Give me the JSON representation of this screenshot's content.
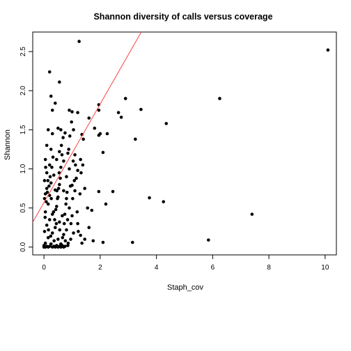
{
  "chart_data": {
    "type": "scatter",
    "title": "Shannon diversity of calls versus coverage",
    "xlabel": "Staph_cov",
    "ylabel": "Shannon",
    "xlim": [
      -0.4,
      10.4
    ],
    "ylim": [
      -0.1,
      2.75
    ],
    "x_ticks": [
      "0",
      "2",
      "4",
      "6",
      "8",
      "10"
    ],
    "y_ticks": [
      "0.0",
      "0.5",
      "1.0",
      "1.5",
      "2.0",
      "2.5"
    ],
    "grid": false,
    "point_color": "#000000",
    "fit_line": {
      "intercept": 0.57,
      "slope": 0.63,
      "color": "#ff4040"
    },
    "points": [
      [
        10.1,
        2.52
      ],
      [
        1.25,
        2.63
      ],
      [
        0.2,
        2.24
      ],
      [
        0.55,
        2.11
      ],
      [
        0.25,
        1.93
      ],
      [
        2.9,
        1.9
      ],
      [
        6.25,
        1.9
      ],
      [
        0.4,
        1.84
      ],
      [
        0.3,
        1.75
      ],
      [
        0.9,
        1.75
      ],
      [
        1.0,
        1.73
      ],
      [
        1.2,
        1.72
      ],
      [
        1.95,
        1.82
      ],
      [
        1.95,
        1.75
      ],
      [
        2.65,
        1.72
      ],
      [
        3.45,
        1.76
      ],
      [
        2.75,
        1.66
      ],
      [
        4.35,
        1.58
      ],
      [
        1.6,
        1.65
      ],
      [
        1.8,
        1.52
      ],
      [
        0.5,
        1.52
      ],
      [
        0.6,
        1.5
      ],
      [
        1.05,
        1.5
      ],
      [
        1.35,
        1.44
      ],
      [
        2.0,
        1.45
      ],
      [
        1.95,
        1.43
      ],
      [
        2.25,
        1.45
      ],
      [
        0.15,
        1.5
      ],
      [
        0.3,
        1.45
      ],
      [
        0.75,
        1.46
      ],
      [
        1.4,
        1.38
      ],
      [
        3.25,
        1.38
      ],
      [
        0.1,
        1.3
      ],
      [
        0.25,
        1.25
      ],
      [
        0.55,
        1.22
      ],
      [
        0.85,
        1.2
      ],
      [
        1.1,
        1.18
      ],
      [
        2.1,
        1.21
      ],
      [
        0.05,
        1.12
      ],
      [
        0.45,
        1.12
      ],
      [
        0.7,
        1.1
      ],
      [
        1.3,
        1.12
      ],
      [
        0.2,
        1.05
      ],
      [
        0.6,
        1.02
      ],
      [
        0.9,
        1.0
      ],
      [
        1.2,
        0.98
      ],
      [
        0.1,
        0.95
      ],
      [
        0.35,
        0.92
      ],
      [
        0.8,
        0.9
      ],
      [
        1.15,
        0.88
      ],
      [
        0.02,
        0.85
      ],
      [
        0.25,
        0.82
      ],
      [
        0.55,
        0.8
      ],
      [
        1.0,
        0.79
      ],
      [
        1.45,
        0.75
      ],
      [
        0.1,
        0.75
      ],
      [
        0.4,
        0.73
      ],
      [
        0.7,
        0.72
      ],
      [
        1.1,
        0.72
      ],
      [
        2.45,
        0.71
      ],
      [
        1.95,
        0.71
      ],
      [
        0.05,
        0.68
      ],
      [
        0.2,
        0.66
      ],
      [
        0.5,
        0.64
      ],
      [
        0.8,
        0.62
      ],
      [
        3.75,
        0.63
      ],
      [
        4.25,
        0.58
      ],
      [
        2.2,
        0.55
      ],
      [
        0.15,
        0.55
      ],
      [
        0.45,
        0.52
      ],
      [
        0.9,
        0.5
      ],
      [
        1.55,
        0.5
      ],
      [
        1.7,
        0.47
      ],
      [
        0.05,
        0.45
      ],
      [
        0.3,
        0.42
      ],
      [
        0.65,
        0.4
      ],
      [
        1.0,
        0.4
      ],
      [
        7.4,
        0.42
      ],
      [
        0.2,
        0.35
      ],
      [
        0.55,
        0.32
      ],
      [
        1.2,
        0.3
      ],
      [
        0.1,
        0.28
      ],
      [
        0.4,
        0.25
      ],
      [
        0.8,
        0.22
      ],
      [
        1.6,
        0.25
      ],
      [
        0.02,
        0.2
      ],
      [
        0.3,
        0.18
      ],
      [
        0.7,
        0.16
      ],
      [
        1.05,
        0.18
      ],
      [
        1.3,
        0.15
      ],
      [
        0.15,
        0.12
      ],
      [
        0.5,
        0.1
      ],
      [
        0.95,
        0.1
      ],
      [
        1.45,
        0.1
      ],
      [
        5.85,
        0.09
      ],
      [
        3.15,
        0.06
      ],
      [
        2.1,
        0.06
      ],
      [
        1.75,
        0.08
      ],
      [
        0.05,
        0.05
      ],
      [
        0.25,
        0.04
      ],
      [
        0.6,
        0.04
      ],
      [
        1.35,
        0.05
      ],
      [
        0.0,
        0.02
      ],
      [
        0.1,
        0.01
      ],
      [
        0.2,
        0.01
      ],
      [
        0.35,
        0.01
      ],
      [
        0.45,
        0.02
      ],
      [
        0.55,
        0.01
      ],
      [
        0.65,
        0.02
      ],
      [
        0.75,
        0.01
      ],
      [
        0.85,
        0.02
      ],
      [
        0.0,
        0.0
      ],
      [
        0.05,
        0.0
      ],
      [
        0.15,
        0.0
      ],
      [
        0.3,
        0.0
      ],
      [
        0.4,
        0.0
      ],
      [
        0.5,
        0.0
      ],
      [
        0.6,
        0.0
      ],
      [
        0.7,
        0.0
      ],
      [
        0.02,
        0.62
      ],
      [
        0.08,
        0.58
      ],
      [
        0.12,
        0.7
      ],
      [
        0.18,
        0.78
      ],
      [
        0.22,
        0.9
      ],
      [
        0.28,
        1.02
      ],
      [
        0.32,
        1.15
      ],
      [
        0.38,
        0.35
      ],
      [
        0.42,
        0.48
      ],
      [
        0.48,
        0.62
      ],
      [
        0.52,
        0.75
      ],
      [
        0.58,
        0.88
      ],
      [
        0.62,
        1.3
      ],
      [
        0.68,
        1.4
      ],
      [
        0.72,
        0.3
      ],
      [
        0.78,
        0.55
      ],
      [
        0.82,
        0.7
      ],
      [
        0.88,
        1.25
      ],
      [
        0.92,
        1.42
      ],
      [
        0.98,
        1.6
      ],
      [
        1.02,
        0.62
      ],
      [
        1.08,
        0.85
      ],
      [
        1.12,
        1.05
      ],
      [
        1.18,
        0.45
      ],
      [
        1.22,
        0.2
      ],
      [
        1.28,
        0.68
      ],
      [
        1.32,
        0.95
      ],
      [
        1.38,
        1.05
      ],
      [
        0.06,
        1.02
      ],
      [
        0.14,
        0.85
      ],
      [
        0.26,
        0.62
      ],
      [
        0.34,
        0.45
      ],
      [
        0.44,
        0.3
      ],
      [
        0.56,
        0.22
      ],
      [
        0.66,
        0.12
      ],
      [
        0.76,
        0.08
      ],
      [
        0.86,
        0.05
      ],
      [
        0.96,
        0.3
      ],
      [
        0.04,
        0.38
      ],
      [
        0.16,
        0.22
      ],
      [
        0.24,
        0.14
      ],
      [
        0.36,
        0.08
      ],
      [
        0.46,
        0.72
      ],
      [
        0.54,
        0.95
      ],
      [
        0.64,
        1.18
      ],
      [
        0.74,
        0.42
      ],
      [
        0.84,
        0.35
      ],
      [
        0.94,
        0.78
      ],
      [
        1.04,
        1.1
      ]
    ]
  }
}
